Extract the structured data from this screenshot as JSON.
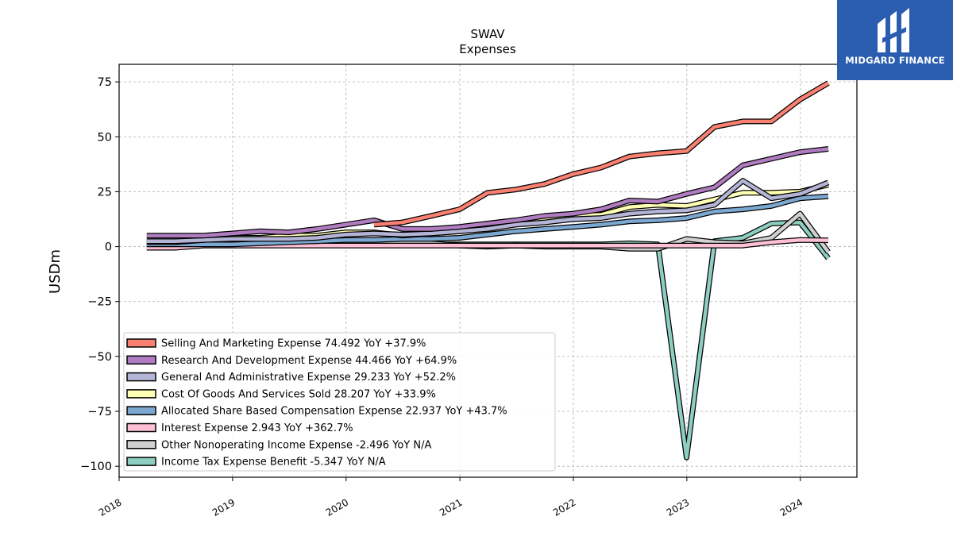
{
  "brand": {
    "name": "MIDGARD FINANCE",
    "color": "#2a5db0",
    "icon": "midgard-logo-icon"
  },
  "chart_data": {
    "type": "line",
    "title": "SWAV",
    "subtitle": "Expenses",
    "xlabel": "",
    "ylabel": "USDm",
    "xlim": [
      "2018-01-01",
      "2024-07-01"
    ],
    "ylim": [
      -105,
      83
    ],
    "x_ticks": [
      "2018",
      "2019",
      "2020",
      "2021",
      "2022",
      "2023",
      "2024"
    ],
    "y_ticks": [
      75,
      50,
      25,
      0,
      -25,
      -50,
      -75,
      -100
    ],
    "y_tick_labels": [
      "75",
      "50",
      "25",
      "0",
      "−25",
      "−50",
      "−75",
      "−100"
    ],
    "grid": true,
    "legend_position": "lower-left",
    "x": [
      "2018-03-31",
      "2018-06-30",
      "2018-09-30",
      "2018-12-31",
      "2019-03-31",
      "2019-06-30",
      "2019-09-30",
      "2019-12-31",
      "2020-03-31",
      "2020-06-30",
      "2020-09-30",
      "2020-12-31",
      "2021-03-31",
      "2021-06-30",
      "2021-09-30",
      "2021-12-31",
      "2022-03-31",
      "2022-06-30",
      "2022-09-30",
      "2022-12-31",
      "2023-03-31",
      "2023-06-30",
      "2023-09-30",
      "2023-12-31",
      "2024-03-31"
    ],
    "series": [
      {
        "name": "Selling And Marketing Expense",
        "legend": "Selling And Marketing Expense  74.492 YoY +37.9%",
        "color": "#fa8072",
        "values": [
          null,
          null,
          null,
          null,
          null,
          null,
          null,
          null,
          10,
          11,
          14,
          17,
          24.5,
          26,
          28.5,
          33,
          36,
          41,
          42.5,
          43.5,
          54.5,
          57,
          57,
          67,
          74.5
        ]
      },
      {
        "name": "Research And Development Expense",
        "legend": "Research And Development Expense  44.466 YoY +64.9%",
        "color": "#b07cc0",
        "values": [
          5,
          5,
          5,
          6,
          7,
          6.5,
          8,
          10,
          12,
          8,
          8,
          9,
          10.5,
          12,
          14,
          15,
          17,
          21,
          20.5,
          24,
          27,
          37,
          40,
          43,
          44.5
        ]
      },
      {
        "name": "General And Administrative Expense",
        "legend": "General And Administrative Expense  29.233 YoY +52.2%",
        "color": "#b4b4d6",
        "values": [
          2.5,
          2.5,
          3,
          3.5,
          3.5,
          3.5,
          4,
          5.5,
          6,
          5.5,
          6,
          7,
          8,
          10,
          11,
          12.5,
          13,
          15,
          16,
          16.5,
          19,
          30,
          22,
          24,
          29.2
        ]
      },
      {
        "name": "Cost Of Goods And Services Sold",
        "legend": "Cost Of Goods And Services Sold  28.207 YoY +33.9%",
        "color": "#ffffb4",
        "values": [
          2,
          2,
          3,
          4,
          4,
          5,
          5,
          6.5,
          6.5,
          5,
          6,
          7,
          9,
          10.5,
          12,
          14,
          14.5,
          18,
          19,
          18.5,
          21.5,
          24.5,
          24.5,
          25,
          28.2
        ]
      },
      {
        "name": "Allocated Share Based Compensation Expense",
        "legend": "Allocated Share Based Compensation Expense  22.937 YoY +43.7%",
        "color": "#7ba7d0",
        "values": [
          1,
          1,
          1,
          1,
          1.5,
          2,
          2.5,
          3,
          3,
          3.5,
          3.5,
          4,
          5.5,
          7,
          8,
          9,
          10,
          11.5,
          12,
          13,
          16,
          17,
          18.5,
          22,
          22.9
        ]
      },
      {
        "name": "Interest Expense",
        "legend": "Interest Expense  2.943 YoY +362.7%",
        "color": "#ffc0d6",
        "values": [
          -0.5,
          -0.5,
          0.5,
          0.5,
          0.5,
          0.5,
          0.5,
          0.5,
          0.5,
          0.5,
          0.5,
          0.5,
          0.5,
          0.5,
          0.5,
          0.5,
          0.5,
          0.5,
          0.5,
          0.5,
          0.5,
          0.5,
          2,
          3,
          2.9
        ]
      },
      {
        "name": "Other Nonoperating Income Expense",
        "legend": "Other Nonoperating Income Expense  -2.496 YoY N/A",
        "color": "#d0d0d0",
        "values": [
          null,
          null,
          null,
          null,
          null,
          null,
          null,
          null,
          2.5,
          2.5,
          1.5,
          0.5,
          0,
          0.5,
          0,
          0,
          0,
          -1,
          -1,
          3.5,
          2,
          1.5,
          4,
          15,
          -2.5
        ]
      },
      {
        "name": "Income Tax Expense Benefit",
        "legend": "Income Tax Expense Benefit  -5.347 YoY N/A",
        "color": "#8ccfc0",
        "values": [
          null,
          1,
          1,
          1,
          1,
          1,
          1,
          1,
          1,
          1,
          1,
          1,
          1,
          1,
          1,
          1,
          1,
          1.5,
          1,
          -96,
          2.5,
          4,
          10.5,
          11,
          -5.3
        ]
      }
    ]
  }
}
